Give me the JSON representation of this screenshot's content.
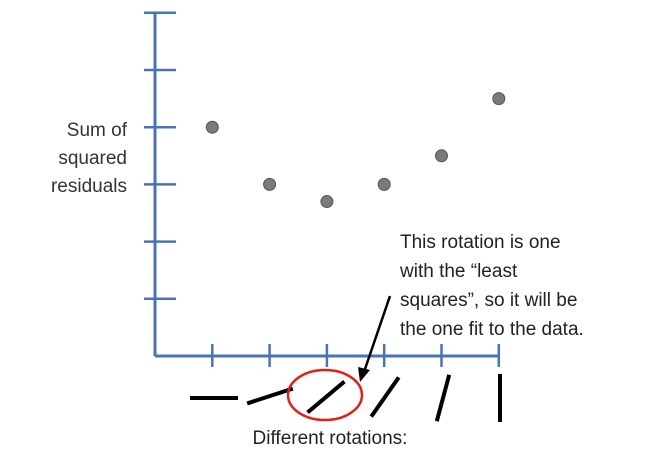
{
  "colors": {
    "axis": "#4a72b8",
    "point": "#7a7a7a",
    "point_stroke": "#555555",
    "highlight_circle": "#e0201b",
    "rotation_line": "#000000",
    "text": "#222222"
  },
  "ylabel_lines": [
    "Sum of",
    "squared",
    "residuals"
  ],
  "annotation_lines": [
    "This rotation is one",
    "with the “least",
    "squares”, so it will be",
    "the one fit to the data."
  ],
  "x_caption": "Different rotations:",
  "chart_data": {
    "type": "scatter",
    "title": "",
    "xlabel": "Different rotations:",
    "ylabel": "Sum of squared residuals",
    "x_ticks": 6,
    "y_ticks": 6,
    "xlim": [
      0,
      6.5
    ],
    "ylim": [
      0,
      6
    ],
    "points": [
      {
        "x": 1,
        "y": 4.0
      },
      {
        "x": 2,
        "y": 3.0
      },
      {
        "x": 3,
        "y": 2.7
      },
      {
        "x": 4,
        "y": 3.0
      },
      {
        "x": 5,
        "y": 3.5
      },
      {
        "x": 6,
        "y": 4.5
      }
    ],
    "rotations_deg": [
      0,
      18,
      40,
      55,
      75,
      90
    ],
    "highlight_index": 2,
    "grid": false,
    "legend": "none"
  }
}
